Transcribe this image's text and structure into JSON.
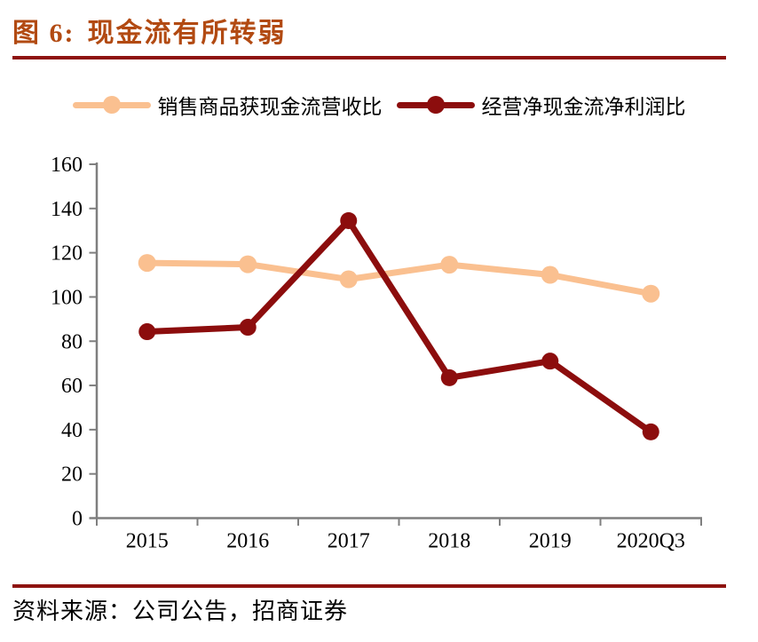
{
  "figure": {
    "title_label": "图 6:",
    "title_text": "现金流有所转弱",
    "source_text": "资料来源：公司公告，招商证券"
  },
  "colors": {
    "title": "#B24A12",
    "rule": "#8E1310",
    "series1": "#FAC090",
    "series2": "#8C0D0D",
    "axis": "#7F7F7F",
    "text": "#000000"
  },
  "chart_data": {
    "type": "line",
    "title": "现金流有所转弱",
    "categories": [
      "2015",
      "2016",
      "2017",
      "2018",
      "2019",
      "2020Q3"
    ],
    "series": [
      {
        "name": "销售商品获现金流营收比",
        "color_key": "series1",
        "values": [
          115.4,
          114.8,
          108.0,
          114.6,
          110.0,
          101.5
        ]
      },
      {
        "name": "经营净现金流净利润比",
        "color_key": "series2",
        "values": [
          84.3,
          86.3,
          134.5,
          63.5,
          71.0,
          39.0
        ]
      }
    ],
    "xlabel": "",
    "ylabel": "",
    "ylim": [
      0,
      160
    ],
    "yticks": [
      0,
      20,
      40,
      60,
      80,
      100,
      120,
      140,
      160
    ],
    "grid": false,
    "legend_position": "top-center"
  }
}
